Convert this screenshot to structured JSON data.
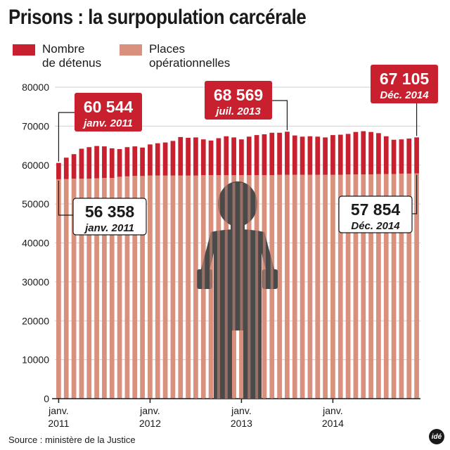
{
  "title": "Prisons : la surpopulation carcérale",
  "legend": [
    {
      "label_line1": "Nombre",
      "label_line2": "de détenus",
      "color": "#c8202f"
    },
    {
      "label_line1": "Places",
      "label_line2": "opérationnelles",
      "color": "#d9907c"
    }
  ],
  "source": "Source : ministère de la Justice",
  "logo": "idé",
  "colors": {
    "detenus": "#c8202f",
    "places": "#d9907c",
    "callout": "#c8202f",
    "figure": "#4a4a4a"
  },
  "callouts": {
    "detenus_start": {
      "value": "60 544",
      "date": "janv. 2011"
    },
    "detenus_peak": {
      "value": "68 569",
      "date": "juil. 2013"
    },
    "detenus_end": {
      "value": "67 105",
      "date": "Déc. 2014"
    },
    "places_start": {
      "value": "56 358",
      "date": "janv. 2011"
    },
    "places_end": {
      "value": "57 854",
      "date": "Déc. 2014"
    }
  },
  "chart_data": {
    "type": "bar",
    "title": "Prisons : la surpopulation carcérale",
    "xlabel": "",
    "ylabel": "",
    "ylim": [
      0,
      80000
    ],
    "yticks": [
      0,
      10000,
      20000,
      30000,
      40000,
      50000,
      60000,
      70000,
      80000
    ],
    "x_tick_labels": [
      {
        "index": 0,
        "line1": "janv.",
        "line2": "2011"
      },
      {
        "index": 12,
        "line1": "janv.",
        "line2": "2012"
      },
      {
        "index": 24,
        "line1": "janv.",
        "line2": "2013"
      },
      {
        "index": 36,
        "line1": "janv.",
        "line2": "2014"
      }
    ],
    "categories": [
      "janv. 2011",
      "févr. 2011",
      "mars 2011",
      "avr. 2011",
      "mai 2011",
      "juin 2011",
      "juil. 2011",
      "août 2011",
      "sept. 2011",
      "oct. 2011",
      "nov. 2011",
      "déc. 2011",
      "janv. 2012",
      "févr. 2012",
      "mars 2012",
      "avr. 2012",
      "mai 2012",
      "juin 2012",
      "juil. 2012",
      "août 2012",
      "sept. 2012",
      "oct. 2012",
      "nov. 2012",
      "déc. 2012",
      "janv. 2013",
      "févr. 2013",
      "mars 2013",
      "avr. 2013",
      "mai 2013",
      "juin 2013",
      "juil. 2013",
      "août 2013",
      "sept. 2013",
      "oct. 2013",
      "nov. 2013",
      "déc. 2013",
      "janv. 2014",
      "févr. 2014",
      "mars 2014",
      "avr. 2014",
      "mai 2014",
      "juin 2014",
      "juil. 2014",
      "août 2014",
      "sept. 2014",
      "oct. 2014",
      "nov. 2014",
      "déc. 2014"
    ],
    "series": [
      {
        "name": "Nombre de détenus",
        "values": [
          60544,
          61900,
          62800,
          64200,
          64600,
          64900,
          64800,
          64300,
          64100,
          64600,
          64800,
          64500,
          65300,
          65600,
          65800,
          66200,
          67200,
          67000,
          67100,
          66600,
          66300,
          66900,
          67400,
          67100,
          66600,
          67300,
          67700,
          67900,
          68300,
          68300,
          68569,
          67600,
          67300,
          67400,
          67300,
          67100,
          67700,
          67800,
          68000,
          68500,
          68700,
          68500,
          68200,
          67400,
          66500,
          66600,
          66800,
          67105
        ]
      },
      {
        "name": "Places opérationnelles",
        "values": [
          56358,
          56400,
          56500,
          56500,
          56500,
          56600,
          56700,
          56700,
          57000,
          57100,
          57200,
          57200,
          57300,
          57300,
          57300,
          57300,
          57300,
          57300,
          57300,
          57400,
          57400,
          57400,
          57400,
          57400,
          57400,
          57400,
          57400,
          57400,
          57400,
          57500,
          57500,
          57500,
          57500,
          57500,
          57500,
          57500,
          57500,
          57500,
          57600,
          57600,
          57600,
          57600,
          57700,
          57700,
          57700,
          57800,
          57800,
          57854
        ]
      }
    ]
  }
}
